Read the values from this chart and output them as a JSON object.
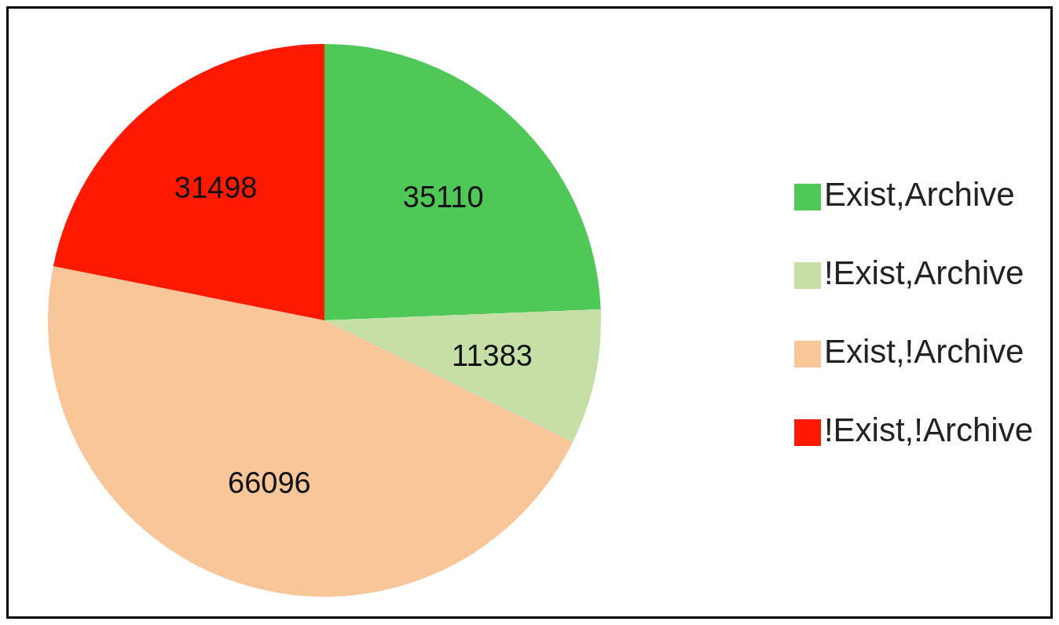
{
  "chart_data": {
    "type": "pie",
    "categories": [
      "Exist,Archive",
      "!Exist,Archive",
      "Exist,!Archive",
      "!Exist,!Archive"
    ],
    "values": [
      35110,
      11383,
      66096,
      31498
    ],
    "colors": [
      "#4fc857",
      "#c5dfa6",
      "#f8c699",
      "#fe1a00"
    ],
    "data_labels": true,
    "legend": "right"
  }
}
